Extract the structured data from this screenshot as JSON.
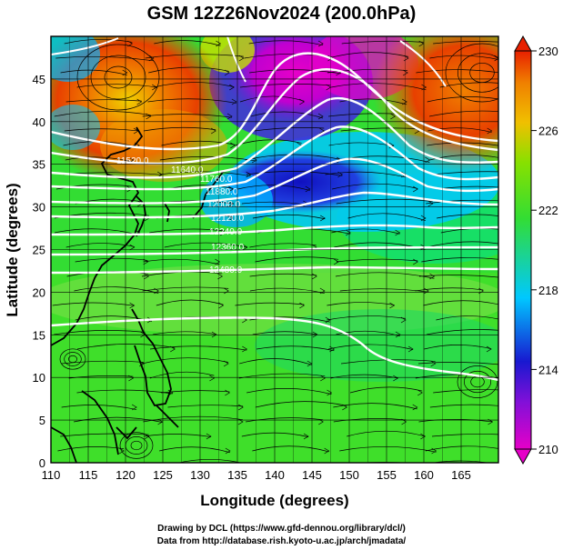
{
  "title": "GSM 12Z26Nov2024 (200.0hPa)",
  "x_axis": {
    "label": "Longitude (degrees)",
    "ticks": [
      "110",
      "115",
      "120",
      "125",
      "130",
      "135",
      "140",
      "145",
      "150",
      "155",
      "160",
      "165"
    ]
  },
  "y_axis": {
    "label": "Latitude  (degrees)",
    "ticks": [
      "0",
      "5",
      "10",
      "15",
      "20",
      "25",
      "30",
      "35",
      "40",
      "45"
    ]
  },
  "colorbar": {
    "ticks": [
      "210",
      "214",
      "218",
      "222",
      "226",
      "230"
    ]
  },
  "contour_labels": [
    "11520.0",
    "11640.0",
    "11760.0",
    "11880.0",
    "12000.0",
    "12120.0",
    "12240.0",
    "12360.0",
    "12480.0"
  ],
  "credits": {
    "line1": "Drawing by DCL (https://www.gfd-dennou.org/library/dcl/)",
    "line2": "Data from http://database.rish.kyoto-u.ac.jp/arch/jmadata/"
  },
  "colors": {
    "cold": "#e600c8",
    "cool": "#2020d0",
    "mid_cool": "#00c8ff",
    "neutral": "#33dd33",
    "warm": "#f0a000",
    "hot": "#e84000",
    "contour": "#ffffff",
    "frame": "#000000"
  }
}
